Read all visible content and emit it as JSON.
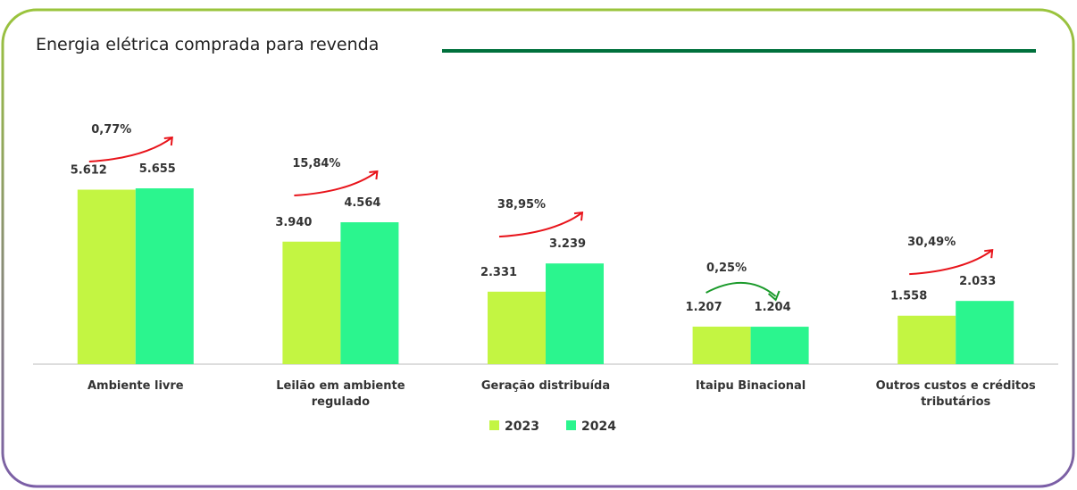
{
  "chart_data": {
    "type": "bar",
    "title": "Energia elétrica comprada para revenda",
    "categories": [
      "Ambiente livre",
      "Leilão em ambiente regulado",
      "Geração distribuída",
      "Itaipu Binacional",
      "Outros custos e créditos tributários"
    ],
    "series": [
      {
        "name": "2023",
        "color": "#c3f542",
        "values": [
          5612,
          3940,
          2331,
          1207,
          1558
        ],
        "value_labels": [
          "5.612",
          "3.940",
          "2.331",
          "1.207",
          "1.558"
        ]
      },
      {
        "name": "2024",
        "color": "#2bf58e",
        "values": [
          5655,
          4564,
          3239,
          1204,
          2033
        ],
        "value_labels": [
          "5.655",
          "4.564",
          "3.239",
          "1.204",
          "2.033"
        ]
      }
    ],
    "annotations": [
      {
        "label": "0,77%",
        "color": "#e8141b"
      },
      {
        "label": "15,84%",
        "color": "#e8141b"
      },
      {
        "label": "38,95%",
        "color": "#e8141b"
      },
      {
        "label": "0,25%",
        "color": "#1a9a2a"
      },
      {
        "label": "30,49%",
        "color": "#e8141b"
      }
    ],
    "ylim": [
      0,
      6000
    ],
    "legend": "bottom"
  }
}
